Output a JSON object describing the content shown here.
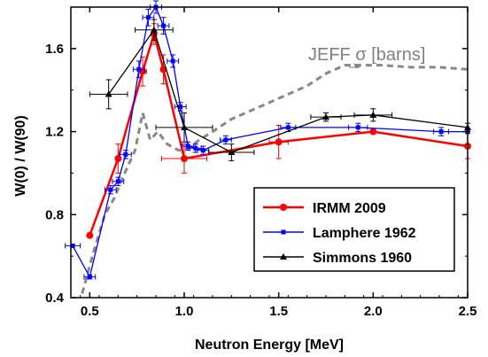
{
  "chart_data": {
    "type": "line",
    "xlabel": "Neutron Energy [MeV]",
    "ylabel": "W(0) / W(90)",
    "xlim": [
      0.4,
      2.5
    ],
    "ylim": [
      0.4,
      1.8
    ],
    "x_ticks": [
      0.5,
      1.0,
      1.5,
      2.0,
      2.5
    ],
    "x_tick_labels": [
      "0.5",
      "1.0",
      "1.5",
      "2.0",
      "2.5"
    ],
    "y_ticks": [
      0.4,
      0.8,
      1.2,
      1.6
    ],
    "y_tick_labels": [
      "0.4",
      "0.8",
      "1.2",
      "1.6"
    ],
    "legend_position": "bottom-right",
    "annotation": {
      "text_before": "JEFF ",
      "symbol": "σ",
      "text_after": " [barns]",
      "arrow_target": {
        "x": 1.93,
        "y": 1.51
      }
    },
    "series": [
      {
        "name": "IRMM 2009",
        "color": "#ff0000",
        "marker": "circle",
        "points": [
          {
            "x": 0.5,
            "y": 0.7,
            "xerr": 0,
            "yerr": 0
          },
          {
            "x": 0.65,
            "y": 1.07,
            "xerr": 0,
            "yerr": 0.07
          },
          {
            "x": 0.78,
            "y": 1.49,
            "xerr": 0.02,
            "yerr": 0.07
          },
          {
            "x": 0.84,
            "y": 1.67,
            "xerr": 0,
            "yerr": 0.05
          },
          {
            "x": 0.89,
            "y": 1.5,
            "xerr": 0,
            "yerr": 0.07
          },
          {
            "x": 1.0,
            "y": 1.07,
            "xerr": 0.12,
            "yerr": 0.07
          },
          {
            "x": 1.5,
            "y": 1.15,
            "xerr": 0.05,
            "yerr": 0.08
          },
          {
            "x": 2.0,
            "y": 1.2,
            "xerr": 0,
            "yerr": 0.01
          },
          {
            "x": 2.5,
            "y": 1.13,
            "xerr": 0,
            "yerr": 0.06
          }
        ]
      },
      {
        "name": "Lamphere 1962",
        "color": "#0000ff",
        "marker": "square",
        "points": [
          {
            "x": 0.41,
            "y": 0.65,
            "xerr": 0.04,
            "yerr": 0
          },
          {
            "x": 0.5,
            "y": 0.5,
            "xerr": 0.03,
            "yerr": 0.01
          },
          {
            "x": 0.61,
            "y": 0.92,
            "xerr": 0.03,
            "yerr": 0.02
          },
          {
            "x": 0.65,
            "y": 0.96,
            "xerr": 0.03,
            "yerr": 0.02
          },
          {
            "x": 0.69,
            "y": 1.09,
            "xerr": 0.03,
            "yerr": 0.02
          },
          {
            "x": 0.76,
            "y": 1.5,
            "xerr": 0.03,
            "yerr": 0.04
          },
          {
            "x": 0.81,
            "y": 1.75,
            "xerr": 0.03,
            "yerr": 0.04
          },
          {
            "x": 0.85,
            "y": 1.8,
            "xerr": 0.03,
            "yerr": 0.03
          },
          {
            "x": 0.89,
            "y": 1.71,
            "xerr": 0.03,
            "yerr": 0.04
          },
          {
            "x": 0.94,
            "y": 1.54,
            "xerr": 0.03,
            "yerr": 0.03
          },
          {
            "x": 0.98,
            "y": 1.32,
            "xerr": 0.03,
            "yerr": 0.02
          },
          {
            "x": 1.02,
            "y": 1.13,
            "xerr": 0.03,
            "yerr": 0.02
          },
          {
            "x": 1.06,
            "y": 1.12,
            "xerr": 0.03,
            "yerr": 0.02
          },
          {
            "x": 1.1,
            "y": 1.11,
            "xerr": 0.03,
            "yerr": 0.02
          },
          {
            "x": 1.22,
            "y": 1.16,
            "xerr": 0.03,
            "yerr": 0.02
          },
          {
            "x": 1.55,
            "y": 1.22,
            "xerr": 0.04,
            "yerr": 0.02
          },
          {
            "x": 1.92,
            "y": 1.22,
            "xerr": 0.05,
            "yerr": 0.02
          },
          {
            "x": 2.36,
            "y": 1.2,
            "xerr": 0.04,
            "yerr": 0.02
          },
          {
            "x": 2.5,
            "y": 1.2,
            "xerr": 0,
            "yerr": 0
          }
        ]
      },
      {
        "name": "Simmons 1960",
        "color": "#000000",
        "marker": "triangle",
        "points": [
          {
            "x": 0.6,
            "y": 1.38,
            "xerr": 0.1,
            "yerr": 0.07
          },
          {
            "x": 0.84,
            "y": 1.69,
            "xerr": 0.1,
            "yerr": 0.05
          },
          {
            "x": 1.0,
            "y": 1.22,
            "xerr": 0.15,
            "yerr": 0.07
          },
          {
            "x": 1.25,
            "y": 1.1,
            "xerr": 0.12,
            "yerr": 0.04
          },
          {
            "x": 1.75,
            "y": 1.27,
            "xerr": 0.08,
            "yerr": 0.02
          },
          {
            "x": 2.0,
            "y": 1.28,
            "xerr": 0.1,
            "yerr": 0.03
          },
          {
            "x": 2.5,
            "y": 1.22,
            "xerr": 0,
            "yerr": 0.02
          }
        ]
      },
      {
        "name": "JEFF σ [barns]",
        "color": "#888888",
        "style": "dashed",
        "points": [
          {
            "x": 0.46,
            "y": 0.42
          },
          {
            "x": 0.52,
            "y": 0.62
          },
          {
            "x": 0.58,
            "y": 0.8
          },
          {
            "x": 0.63,
            "y": 0.88
          },
          {
            "x": 0.68,
            "y": 0.99
          },
          {
            "x": 0.74,
            "y": 1.11
          },
          {
            "x": 0.78,
            "y": 1.29
          },
          {
            "x": 0.82,
            "y": 1.16
          },
          {
            "x": 0.86,
            "y": 1.2
          },
          {
            "x": 0.91,
            "y": 1.14
          },
          {
            "x": 0.97,
            "y": 1.11
          },
          {
            "x": 1.02,
            "y": 1.12
          },
          {
            "x": 1.08,
            "y": 1.16
          },
          {
            "x": 1.15,
            "y": 1.2
          },
          {
            "x": 1.25,
            "y": 1.26
          },
          {
            "x": 1.35,
            "y": 1.3
          },
          {
            "x": 1.45,
            "y": 1.34
          },
          {
            "x": 1.55,
            "y": 1.38
          },
          {
            "x": 1.65,
            "y": 1.42
          },
          {
            "x": 1.75,
            "y": 1.48
          },
          {
            "x": 1.85,
            "y": 1.52
          },
          {
            "x": 1.95,
            "y": 1.52
          },
          {
            "x": 2.05,
            "y": 1.52
          },
          {
            "x": 2.2,
            "y": 1.51
          },
          {
            "x": 2.35,
            "y": 1.51
          },
          {
            "x": 2.5,
            "y": 1.5
          }
        ]
      }
    ]
  }
}
